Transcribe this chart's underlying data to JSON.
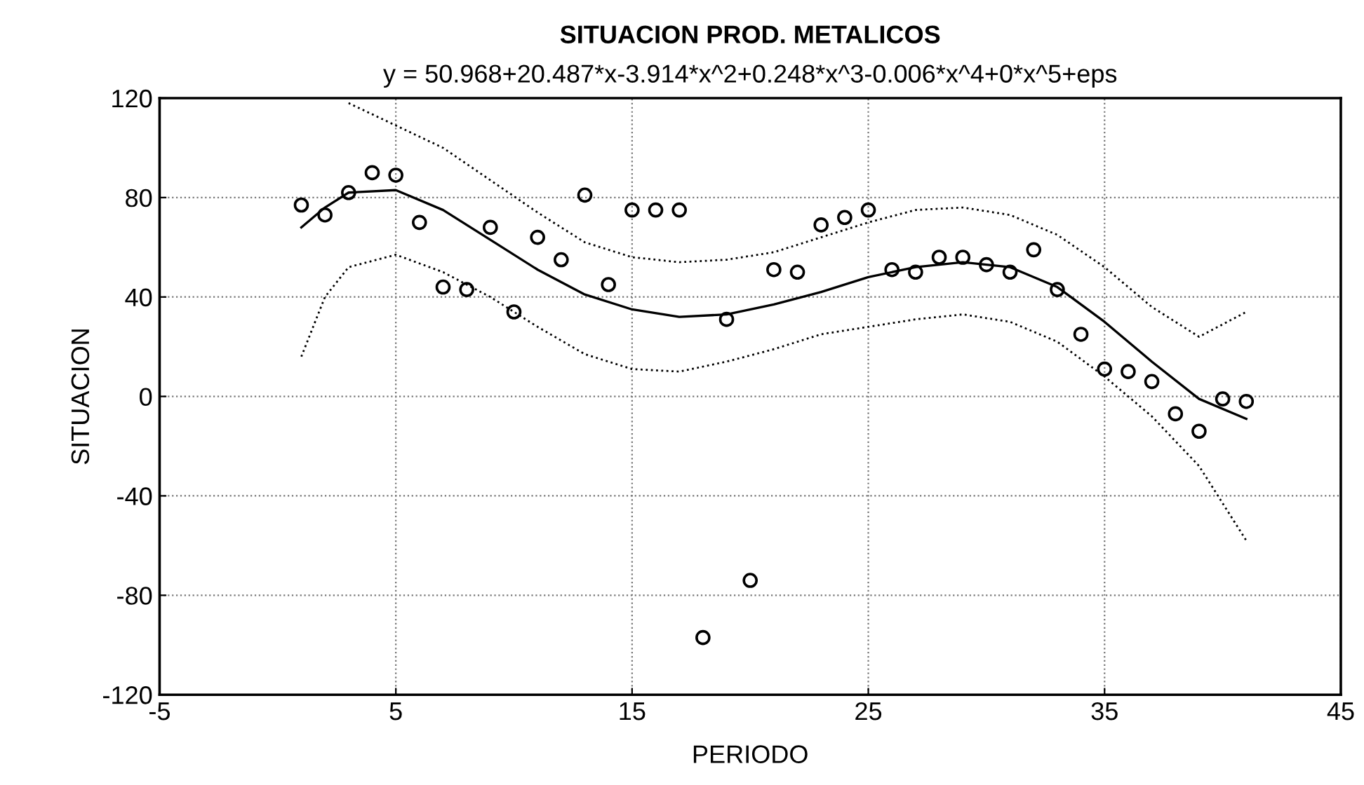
{
  "chart_data": {
    "type": "scatter",
    "title": "SITUACION PROD. METALICOS",
    "subtitle": "y = 50.968+20.487*x-3.914*x^2+0.248*x^3-0.006*x^4+0*x^5+eps",
    "xlabel": "PERIODO",
    "ylabel": "SITUACION",
    "xlim": [
      -5,
      45
    ],
    "xticks": [
      -5,
      5,
      15,
      25,
      35,
      45
    ],
    "ylim": [
      -120,
      120
    ],
    "yticks": [
      -120,
      -80,
      -40,
      0,
      40,
      80,
      120
    ],
    "grid": true,
    "marker": "circle",
    "series": [
      {
        "color": "#000000",
        "x": [
          1,
          2,
          3,
          4,
          5,
          6,
          7,
          8,
          9,
          10,
          11,
          12,
          13,
          14,
          15,
          16,
          17,
          18,
          19,
          20,
          21,
          22,
          23,
          24,
          25,
          26,
          27,
          28,
          29,
          30,
          31,
          32,
          33,
          34,
          35,
          36,
          37,
          38,
          39,
          40,
          41
        ],
        "values": [
          77,
          73,
          82,
          90,
          89,
          70,
          44,
          43,
          68,
          34,
          64,
          55,
          81,
          45,
          75,
          75,
          75,
          -97,
          31,
          -74,
          51,
          50,
          69,
          72,
          75,
          51,
          50,
          56,
          56,
          53,
          50,
          59,
          43,
          25,
          11,
          10,
          6,
          -7,
          -14,
          -1,
          -2
        ]
      },
      {
        "type": "line",
        "color": "#000000",
        "marker": "none",
        "line_style": "solid",
        "x": [
          1,
          2,
          3,
          5,
          7,
          9,
          11,
          13,
          15,
          17,
          19,
          21,
          23,
          25,
          27,
          29,
          31,
          33,
          35,
          37,
          39,
          41
        ],
        "values": [
          68,
          76,
          82,
          83,
          75,
          63,
          51,
          41,
          35,
          32,
          33,
          37,
          42,
          48,
          52,
          54,
          52,
          44,
          30,
          14,
          -1,
          -9
        ]
      },
      {
        "type": "line",
        "color": "#000000",
        "marker": "none",
        "line_style": "dotted",
        "x": [
          1,
          2,
          3,
          5,
          7,
          9,
          11,
          13,
          15,
          17,
          19,
          21,
          23,
          25,
          27,
          29,
          31,
          33,
          35,
          37,
          39,
          41
        ],
        "values": [
          16,
          40,
          52,
          57,
          50,
          40,
          28,
          17,
          11,
          10,
          14,
          19,
          25,
          28,
          31,
          33,
          30,
          22,
          8,
          -8,
          -28,
          -58
        ]
      },
      {
        "type": "line",
        "color": "#000000",
        "marker": "none",
        "line_style": "dotted",
        "x": [
          3,
          5,
          7,
          9,
          11,
          13,
          15,
          17,
          19,
          21,
          23,
          25,
          27,
          29,
          31,
          33,
          35,
          37,
          39,
          41
        ],
        "values": [
          118,
          109,
          100,
          87,
          74,
          62,
          56,
          54,
          55,
          58,
          64,
          70,
          75,
          76,
          73,
          65,
          52,
          36,
          24,
          34
        ]
      }
    ]
  }
}
